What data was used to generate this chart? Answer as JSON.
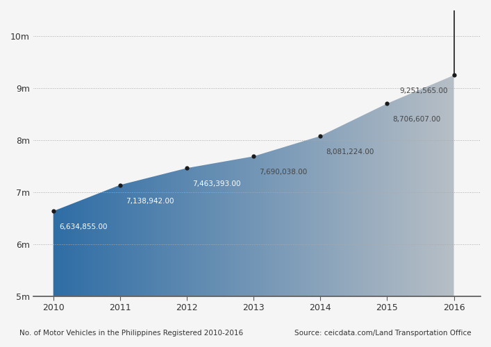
{
  "years": [
    2010,
    2011,
    2012,
    2013,
    2014,
    2015,
    2016
  ],
  "values": [
    6634855,
    7138942,
    7463393,
    7690038,
    8081224,
    8706607,
    9251565
  ],
  "labels": [
    "6,634,855.00",
    "7,138,942.00",
    "7,463,393.00",
    "7,690,038.00",
    "8,081,224.00",
    "8,706,607.00",
    "9,251,565.00"
  ],
  "ylim": [
    5000000,
    10500000
  ],
  "yticks": [
    5000000,
    6000000,
    7000000,
    8000000,
    9000000,
    10000000
  ],
  "ytick_labels": [
    "5m",
    "6m",
    "7m",
    "8m",
    "9m",
    "10m"
  ],
  "background_color": "#f5f5f5",
  "footer_left": "No. of Motor Vehicles in the Philippines Registered 2010-2016",
  "footer_right": "Source: ceicdata.com/Land Transportation Office",
  "color_left": "#2869a4",
  "color_right": "#c0c4c8",
  "line_color": "#1a1a1a",
  "dot_color": "#1a1a1a",
  "grid_color": "#aaaaaa",
  "label_color_early": "#ffffff",
  "label_color_late": "#444444",
  "xlim_left": 2009.7,
  "xlim_right": 2016.4
}
